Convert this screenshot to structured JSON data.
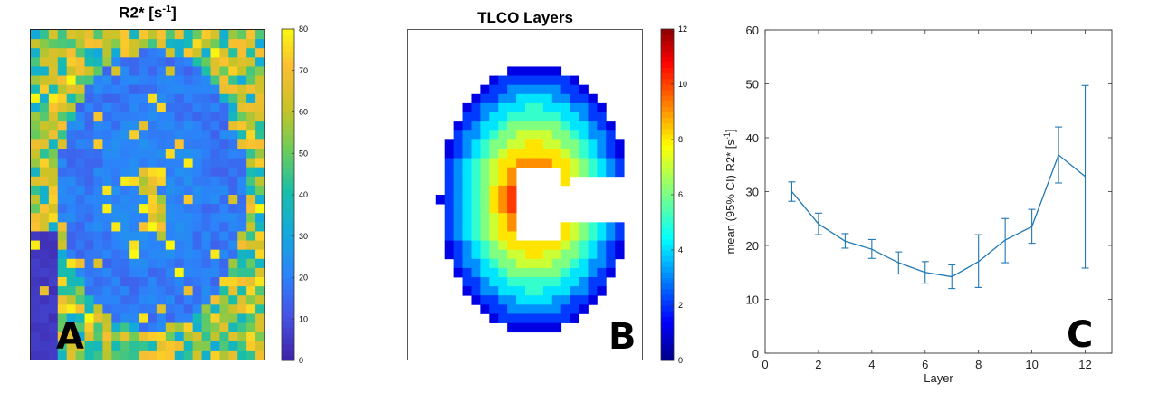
{
  "panels": {
    "a": {
      "title_main": "R2* [s",
      "title_sup": "-1",
      "title_end": "]",
      "letter": "A",
      "colorbar_ticks": [
        "0",
        "10",
        "20",
        "30",
        "40",
        "50",
        "60",
        "70",
        "80"
      ]
    },
    "b": {
      "title": "TLCO Layers",
      "letter": "B",
      "colorbar_ticks": [
        "0",
        "2",
        "4",
        "6",
        "8",
        "10",
        "12"
      ]
    },
    "c": {
      "letter": "C",
      "ylabel_main": "mean (95% CI) R2* [s",
      "ylabel_sup": "-1",
      "ylabel_end": "]"
    }
  },
  "chart_data": [
    {
      "type": "heatmap",
      "title": "R2* [s-1]",
      "colormap": "parula",
      "clim": [
        0,
        80
      ],
      "colorbar_ticks": [
        0,
        10,
        20,
        30,
        40,
        50,
        60,
        70,
        80
      ]
    },
    {
      "type": "heatmap",
      "title": "TLCO Layers",
      "colormap": "jet",
      "clim": [
        0,
        12
      ],
      "colorbar_ticks": [
        0,
        2,
        4,
        6,
        8,
        10,
        12
      ]
    },
    {
      "type": "line",
      "title": "",
      "xlabel": "Layer",
      "ylabel": "mean (95% CI) R2* [s-1]",
      "xlim": [
        0,
        13
      ],
      "ylim": [
        0,
        60
      ],
      "xticks": [
        0,
        2,
        4,
        6,
        8,
        10,
        12
      ],
      "yticks": [
        0,
        10,
        20,
        30,
        40,
        50,
        60
      ],
      "color": "#1f77b4",
      "grid": false,
      "series": [
        {
          "x": [
            1,
            2,
            3,
            4,
            5,
            6,
            7,
            8,
            9,
            10,
            11,
            12
          ],
          "y": [
            30.0,
            24.0,
            20.8,
            19.3,
            16.8,
            15.0,
            14.2,
            17.0,
            21.0,
            23.5,
            36.8,
            32.8
          ],
          "ci_low": [
            28.2,
            22.0,
            19.5,
            17.6,
            14.7,
            13.0,
            12.0,
            12.2,
            16.8,
            20.4,
            31.6,
            15.8
          ],
          "ci_high": [
            31.8,
            26.0,
            22.2,
            21.1,
            18.8,
            17.0,
            16.4,
            22.0,
            25.0,
            26.7,
            42.0,
            49.7
          ]
        }
      ]
    }
  ]
}
